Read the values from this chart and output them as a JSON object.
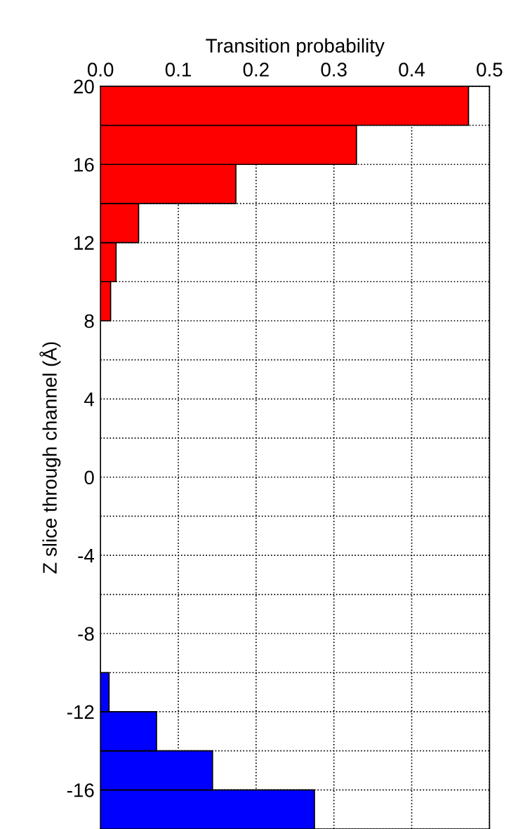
{
  "chart_data": {
    "type": "histogram",
    "orientation": "horizontal",
    "xlabel": "Transition probability",
    "ylabel": "Z slice through channel (Å)",
    "bins": [
      -18,
      -16,
      -14,
      -12,
      -10,
      -8,
      -6,
      -4,
      -2,
      0,
      2,
      4,
      6,
      8,
      10,
      12,
      14,
      16,
      18,
      20
    ],
    "series": [
      {
        "color": "#ff0000",
        "values": [
          null,
          null,
          null,
          null,
          null,
          null,
          null,
          null,
          null,
          null,
          null,
          null,
          null,
          0.013,
          0.02,
          0.049,
          0.174,
          0.329,
          0.473
        ]
      },
      {
        "color": "#0000ff",
        "values": [
          0.275,
          0.144,
          0.072,
          0.011,
          null,
          null,
          null,
          null,
          null,
          null,
          null,
          null,
          null,
          null,
          null,
          null,
          null,
          null,
          null
        ]
      }
    ],
    "xlim": [
      0,
      0.5
    ],
    "xticks": [
      {
        "value": 0,
        "label": "0.0"
      },
      0.1,
      0.2,
      0.3,
      0.4,
      0.5
    ],
    "ylim": [
      -18,
      20
    ],
    "yticks": [
      {
        "value": -18,
        "label": null
      },
      -16,
      {
        "value": -14,
        "label": null
      },
      -12,
      {
        "value": -10,
        "label": null
      },
      -8,
      {
        "value": -6,
        "label": null
      },
      -4,
      {
        "value": -2,
        "label": null
      },
      0,
      {
        "value": 2,
        "label": null
      },
      4,
      {
        "value": 6,
        "label": null
      },
      8,
      {
        "value": 10,
        "label": null
      },
      12,
      {
        "value": 14,
        "label": null
      },
      16,
      {
        "value": 18,
        "label": null
      },
      20
    ],
    "grid": true,
    "line_style": "dotted"
  }
}
